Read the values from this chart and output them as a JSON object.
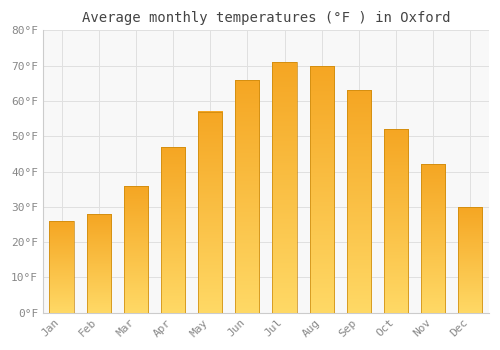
{
  "title": "Average monthly temperatures (°F ) in Oxford",
  "months": [
    "Jan",
    "Feb",
    "Mar",
    "Apr",
    "May",
    "Jun",
    "Jul",
    "Aug",
    "Sep",
    "Oct",
    "Nov",
    "Dec"
  ],
  "values": [
    26,
    28,
    36,
    47,
    57,
    66,
    71,
    70,
    63,
    52,
    42,
    30
  ],
  "bar_color_dark": "#F5A623",
  "bar_color_light": "#FFD966",
  "background_color": "#FFFFFF",
  "plot_bg_color": "#F8F8F8",
  "grid_color": "#E0E0E0",
  "title_fontsize": 10,
  "tick_fontsize": 8,
  "tick_color": "#888888",
  "ylim": [
    0,
    80
  ],
  "yticks": [
    0,
    10,
    20,
    30,
    40,
    50,
    60,
    70,
    80
  ],
  "ytick_labels": [
    "0°F",
    "10°F",
    "20°F",
    "30°F",
    "40°F",
    "50°F",
    "60°F",
    "70°F",
    "80°F"
  ]
}
